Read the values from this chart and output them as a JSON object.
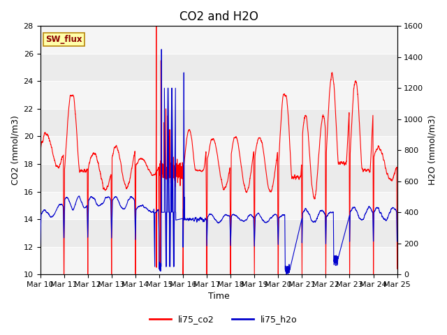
{
  "title": "CO2 and H2O",
  "xlabel": "Time",
  "ylabel_left": "CO2 (mmol/m3)",
  "ylabel_right": "H2O (mmol/m3)",
  "ylim_left": [
    10,
    28
  ],
  "ylim_right": [
    0,
    1600
  ],
  "yticks_left": [
    10,
    12,
    14,
    16,
    18,
    20,
    22,
    24,
    26,
    28
  ],
  "yticks_right": [
    0,
    200,
    400,
    600,
    800,
    1000,
    1200,
    1400,
    1600
  ],
  "color_co2": "#ff0000",
  "color_h2o": "#0000cc",
  "fig_bg": "#ffffff",
  "plot_bg": "#ebebeb",
  "band_color_light": "#f5f5f5",
  "sw_flux_label": "SW_flux",
  "legend_co2": "li75_co2",
  "legend_h2o": "li75_h2o",
  "xtick_labels": [
    "Mar 10",
    "Mar 11",
    "Mar 12",
    "Mar 13",
    "Mar 14",
    "Mar 15",
    "Mar 16",
    "Mar 17",
    "Mar 18",
    "Mar 19",
    "Mar 20",
    "Mar 21",
    "Mar 22",
    "Mar 23",
    "Mar 24",
    "Mar 25"
  ],
  "title_fontsize": 12,
  "axis_fontsize": 9,
  "tick_fontsize": 8
}
